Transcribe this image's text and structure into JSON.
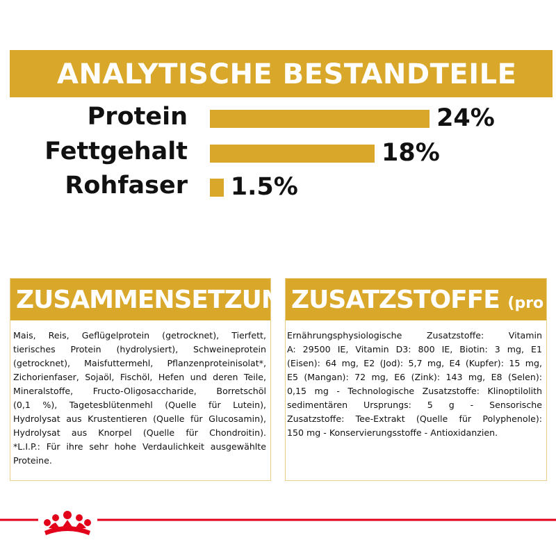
{
  "chart_data": {
    "type": "bar",
    "title": "ANALYTISCHE BESTANDTEILE",
    "categories": [
      "Protein",
      "Fettgehalt",
      "Rohfaser"
    ],
    "values": [
      24,
      18,
      1.5
    ],
    "value_labels": [
      "24%",
      "18%",
      "1.5%"
    ],
    "color": "#d9a82b"
  },
  "composition": {
    "title": "ZUSAMMENSETZUNG",
    "lines": [
      "Mais, Reis, Geflügelprotein (getrocknet), Tierfett,",
      "tierisches Protein (hydrolysiert), Schweineprotein",
      "(getrocknet), Maisfuttermehl, Pflanzenproteinisolat*,",
      "Zichorienfaser, Sojaöl, Fischöl, Hefen und deren Teile,",
      "Mineralstoffe, Fructo-Oligosaccharide, Borretschöl",
      "(0,1 %), Tagetesblütenmehl (Quelle für Lutein),",
      "Hydrolysat aus Krustentieren (Quelle für Glucosamin),",
      "Hydrolysat aus Knorpel (Quelle für Chondroitin).",
      "*L.I.P.: Für ihre sehr hohe Verdaulichkeit ausgewählte",
      "Proteine."
    ]
  },
  "additives": {
    "title": "ZUSATZSTOFFE",
    "unit": "(pro kg)",
    "lines": [
      "Ernährungsphysiologische Zusatzstoffe: Vitamin",
      "A: 29500 IE, Vitamin D3: 800 IE, Biotin: 3 mg, E1",
      "(Eisen): 64 mg, E2 (Jod): 5,7 mg, E4 (Kupfer): 15 mg,",
      "E5 (Mangan): 72 mg, E6 (Zink): 143 mg, E8 (Selen):",
      "0,15 mg - Technologische Zusatzstoffe: Klinoptilolith",
      "sedimentären Ursprungs: 5 g - Sensorische",
      "Zusatzstoffe: Tee-Extrakt (Quelle für Polyphenole):",
      "150 mg - Konservierungsstoffe - Antioxidanzien."
    ]
  }
}
